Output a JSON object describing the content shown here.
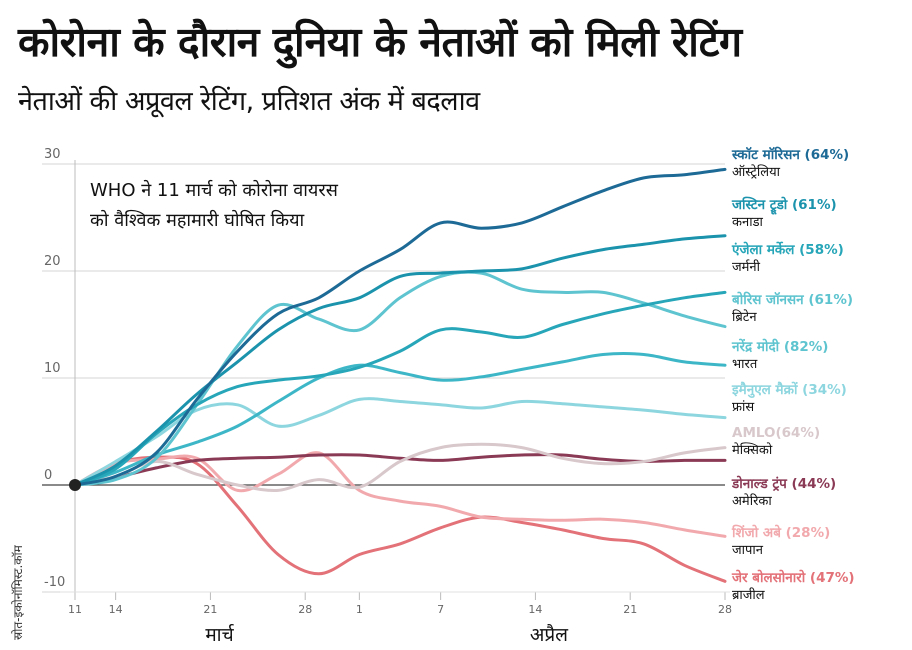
{
  "title": "कोरोना के दौरान दुनिया के नेताओं को मिली रेटिंग",
  "subtitle": "नेताओं की अप्रूवल रेटिंग, प्रतिशत अंक में बदलाव",
  "annotation": [
    "WHO ने 11 मार्च को कोरोना वायरस",
    "को वैश्विक महामारी घोषित किया"
  ],
  "source": "स्रोत-इकोनॉमिस्ट.कॉम",
  "chart_data": {
    "type": "line",
    "title": "कोरोना के दौरान दुनिया के नेताओं को मिली रेटिंग",
    "subtitle": "नेताओं की अप्रूवल रेटिंग, प्रतिशत अंक में बदलाव",
    "xlabel": "",
    "ylabel": "",
    "ylim": [
      -10,
      30
    ],
    "xlim": [
      0,
      48
    ],
    "y_ticks": [
      -10,
      0,
      10,
      20,
      30
    ],
    "x_ticks": [
      {
        "day": 0,
        "label": "11"
      },
      {
        "day": 3,
        "label": "14"
      },
      {
        "day": 10,
        "label": "21"
      },
      {
        "day": 17,
        "label": "28"
      },
      {
        "day": 21,
        "label": "1"
      },
      {
        "day": 27,
        "label": "7"
      },
      {
        "day": 34,
        "label": "14"
      },
      {
        "day": 41,
        "label": "21"
      },
      {
        "day": 48,
        "label": "28"
      }
    ],
    "month_labels": [
      {
        "day": 12,
        "label": "मार्च"
      },
      {
        "day": 35,
        "label": "अप्रैल"
      }
    ],
    "grid": true,
    "legend": "right (direct labels)",
    "x_days": [
      0,
      3,
      6,
      9,
      12,
      15,
      18,
      21,
      24,
      27,
      30,
      33,
      36,
      39,
      42,
      45,
      48
    ],
    "series": [
      {
        "name": "स्कॉट मॉरिसन (64%)",
        "country": "ऑस्ट्रेलिया",
        "color": "#1d6a96",
        "label_color": "#1d6a96",
        "values": [
          0,
          0.8,
          3,
          8,
          12.5,
          16,
          17.5,
          20,
          22,
          24.5,
          24,
          24.5,
          26,
          27.5,
          28.7,
          29,
          29.5
        ]
      },
      {
        "name": "जस्टिन ट्रूडो (61%)",
        "country": "कनाडा",
        "color": "#1b93ad",
        "label_color": "#1b93ad",
        "values": [
          0,
          1.8,
          5,
          8.5,
          11.5,
          14.5,
          16.5,
          17.5,
          19.5,
          19.8,
          20,
          20.2,
          21.2,
          22,
          22.5,
          23,
          23.3
        ]
      },
      {
        "name": "एंजेला मर्केल (58%)",
        "country": "जर्मनी",
        "color": "#26a6b8",
        "label_color": "#26a6b8",
        "values": [
          0,
          1.5,
          4.8,
          7.5,
          9.2,
          9.8,
          10.2,
          11,
          12.5,
          14.5,
          14.3,
          13.8,
          15,
          16,
          16.8,
          17.5,
          18
        ]
      },
      {
        "name": "बोरिस जॉनसन (61%)",
        "country": "ब्रिटेन",
        "color": "#5ec4cf",
        "label_color": "#5ec4cf",
        "values": [
          0,
          0.5,
          2.5,
          7.5,
          13,
          16.8,
          15.5,
          14.5,
          17.5,
          19.5,
          19.8,
          18.3,
          18,
          18,
          17,
          15.8,
          14.8
        ]
      },
      {
        "name": "नरेंद्र मोदी (82%)",
        "country": "भारत",
        "color": "#3db7c7",
        "label_color": "#5ec4cf",
        "values": [
          0,
          1.2,
          2.8,
          4,
          5.5,
          7.8,
          10,
          11.2,
          10.5,
          9.8,
          10.1,
          10.8,
          11.5,
          12.2,
          12.2,
          11.5,
          11.2
        ]
      },
      {
        "name": "इमैनुएल मैक्रों (34%)",
        "country": "फ्रांस",
        "color": "#8dd6df",
        "label_color": "#8dd6df",
        "values": [
          0,
          2.2,
          4.5,
          7,
          7.5,
          5.5,
          6.5,
          8,
          7.8,
          7.5,
          7.2,
          7.8,
          7.6,
          7.3,
          7,
          6.6,
          6.3
        ]
      },
      {
        "name": "AMLO(64%)",
        "country": "मेक्सिको",
        "color": "#d8c7cb",
        "label_color": "#d8c7cb",
        "values": [
          0,
          0.8,
          2.2,
          1,
          0,
          -0.5,
          0.5,
          -0.2,
          2.2,
          3.5,
          3.8,
          3.5,
          2.5,
          2,
          2.2,
          3,
          3.5
        ]
      },
      {
        "name": "डोनाल्ड ट्रंप (44%)",
        "country": "अमेरिका",
        "color": "#8b3a55",
        "label_color": "#8b3a55",
        "values": [
          0,
          0.7,
          1.6,
          2.3,
          2.5,
          2.6,
          2.8,
          2.8,
          2.5,
          2.3,
          2.6,
          2.8,
          2.8,
          2.4,
          2.2,
          2.3,
          2.3
        ]
      },
      {
        "name": "शिंजो अबे (28%)",
        "country": "जापान",
        "color": "#f2a9ad",
        "label_color": "#f2a9ad",
        "values": [
          0,
          2,
          2.4,
          2.5,
          -0.5,
          1,
          3,
          -0.5,
          -1.5,
          -2,
          -3,
          -3.2,
          -3.3,
          -3.2,
          -3.5,
          -4.2,
          -4.8
        ]
      },
      {
        "name": "जेर बोलसोनारो (47%)",
        "country": "ब्राजील",
        "color": "#e37178",
        "label_color": "#e37178",
        "values": [
          0,
          2,
          2.6,
          2,
          -2,
          -6.5,
          -8.3,
          -6.5,
          -5.5,
          -4,
          -3,
          -3.5,
          -4.2,
          -5,
          -5.5,
          -7.5,
          -9
        ]
      }
    ]
  }
}
